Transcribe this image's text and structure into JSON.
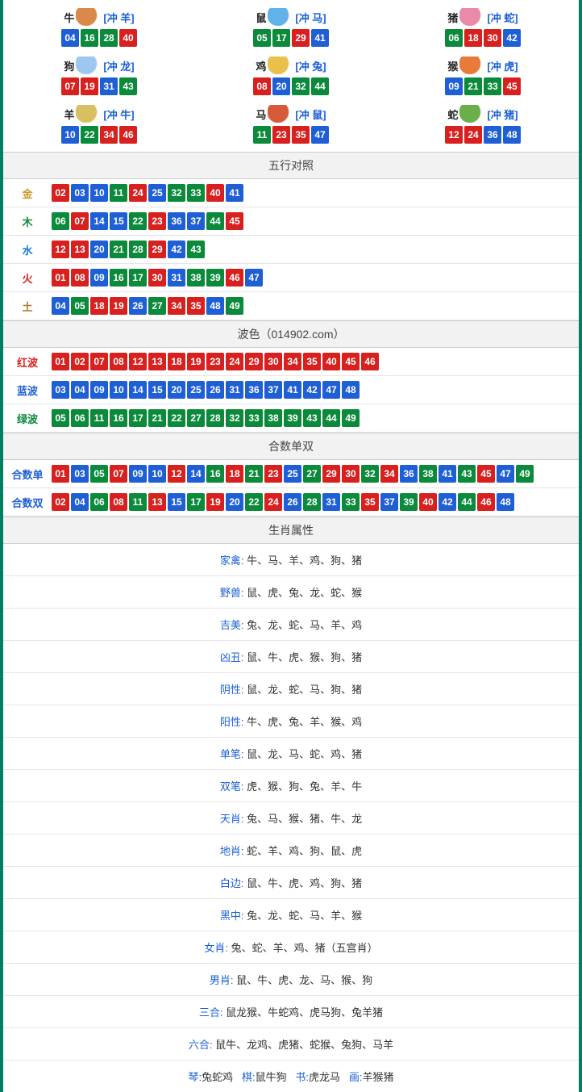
{
  "colors": {
    "red": "#d8201f",
    "blue": "#1f5fd6",
    "green": "#0a8a3a",
    "border": "#008060",
    "header_bg": "#f2f2f2",
    "text": "#333333",
    "link_blue": "#1a5fd6"
  },
  "ball_color_map": {
    "red": [
      "01",
      "02",
      "07",
      "08",
      "12",
      "13",
      "18",
      "19",
      "23",
      "24",
      "29",
      "30",
      "34",
      "35",
      "40",
      "45",
      "46"
    ],
    "blue": [
      "03",
      "04",
      "09",
      "10",
      "14",
      "15",
      "20",
      "25",
      "26",
      "31",
      "36",
      "37",
      "41",
      "42",
      "47",
      "48"
    ],
    "green": [
      "05",
      "06",
      "11",
      "16",
      "17",
      "21",
      "22",
      "27",
      "28",
      "32",
      "33",
      "38",
      "39",
      "43",
      "44",
      "49"
    ]
  },
  "zodiac_icon_colors": {
    "牛": "#d98a4a",
    "鼠": "#5fb3e8",
    "猪": "#e88aa8",
    "狗": "#9cc8f0",
    "鸡": "#e8c04a",
    "猴": "#e87a3a",
    "羊": "#d8c060",
    "马": "#d85a3a",
    "蛇": "#6ab04a"
  },
  "zodiac": [
    {
      "name": "牛",
      "clash": "[冲 羊]",
      "balls": [
        "04",
        "16",
        "28",
        "40"
      ]
    },
    {
      "name": "鼠",
      "clash": "[冲 马]",
      "balls": [
        "05",
        "17",
        "29",
        "41"
      ]
    },
    {
      "name": "猪",
      "clash": "[冲 蛇]",
      "balls": [
        "06",
        "18",
        "30",
        "42"
      ]
    },
    {
      "name": "狗",
      "clash": "[冲 龙]",
      "balls": [
        "07",
        "19",
        "31",
        "43"
      ]
    },
    {
      "name": "鸡",
      "clash": "[冲 兔]",
      "balls": [
        "08",
        "20",
        "32",
        "44"
      ]
    },
    {
      "name": "猴",
      "clash": "[冲 虎]",
      "balls": [
        "09",
        "21",
        "33",
        "45"
      ]
    },
    {
      "name": "羊",
      "clash": "[冲 牛]",
      "balls": [
        "10",
        "22",
        "34",
        "46"
      ]
    },
    {
      "name": "马",
      "clash": "[冲 鼠]",
      "balls": [
        "11",
        "23",
        "35",
        "47"
      ]
    },
    {
      "name": "蛇",
      "clash": "[冲 猪]",
      "balls": [
        "12",
        "24",
        "36",
        "48"
      ]
    }
  ],
  "sections": {
    "wuxing_title": "五行对照",
    "bose_title": "波色（014902.com）",
    "heshu_title": "合数单双",
    "shengxiao_title": "生肖属性"
  },
  "wuxing": [
    {
      "label": "金",
      "color": "#c79a2a",
      "balls": [
        "02",
        "03",
        "10",
        "11",
        "24",
        "25",
        "32",
        "33",
        "40",
        "41"
      ]
    },
    {
      "label": "木",
      "color": "#1a8a3a",
      "balls": [
        "06",
        "07",
        "14",
        "15",
        "22",
        "23",
        "36",
        "37",
        "44",
        "45"
      ]
    },
    {
      "label": "水",
      "color": "#1a7ad6",
      "balls": [
        "12",
        "13",
        "20",
        "21",
        "28",
        "29",
        "42",
        "43"
      ]
    },
    {
      "label": "火",
      "color": "#d8201f",
      "balls": [
        "01",
        "08",
        "09",
        "16",
        "17",
        "30",
        "31",
        "38",
        "39",
        "46",
        "47"
      ]
    },
    {
      "label": "土",
      "color": "#b07a2a",
      "balls": [
        "04",
        "05",
        "18",
        "19",
        "26",
        "27",
        "34",
        "35",
        "48",
        "49"
      ]
    }
  ],
  "bose": [
    {
      "label": "红波",
      "color": "#d8201f",
      "balls": [
        "01",
        "02",
        "07",
        "08",
        "12",
        "13",
        "18",
        "19",
        "23",
        "24",
        "29",
        "30",
        "34",
        "35",
        "40",
        "45",
        "46"
      ]
    },
    {
      "label": "蓝波",
      "color": "#1f5fd6",
      "balls": [
        "03",
        "04",
        "09",
        "10",
        "14",
        "15",
        "20",
        "25",
        "26",
        "31",
        "36",
        "37",
        "41",
        "42",
        "47",
        "48"
      ]
    },
    {
      "label": "绿波",
      "color": "#0a8a3a",
      "balls": [
        "05",
        "06",
        "11",
        "16",
        "17",
        "21",
        "22",
        "27",
        "28",
        "32",
        "33",
        "38",
        "39",
        "43",
        "44",
        "49"
      ]
    }
  ],
  "heshu": [
    {
      "label": "合数单",
      "color": "#1f5fd6",
      "balls": [
        "01",
        "03",
        "05",
        "07",
        "09",
        "10",
        "12",
        "14",
        "16",
        "18",
        "21",
        "23",
        "25",
        "27",
        "29",
        "30",
        "32",
        "34",
        "36",
        "38",
        "41",
        "43",
        "45",
        "47",
        "49"
      ]
    },
    {
      "label": "合数双",
      "color": "#1f5fd6",
      "balls": [
        "02",
        "04",
        "06",
        "08",
        "11",
        "13",
        "15",
        "17",
        "19",
        "20",
        "22",
        "24",
        "26",
        "28",
        "31",
        "33",
        "35",
        "37",
        "39",
        "40",
        "42",
        "44",
        "46",
        "48"
      ]
    }
  ],
  "attrs": [
    {
      "label": "家禽:",
      "value": "牛、马、羊、鸡、狗、猪"
    },
    {
      "label": "野兽:",
      "value": "鼠、虎、兔、龙、蛇、猴"
    },
    {
      "label": "吉美:",
      "value": "兔、龙、蛇、马、羊、鸡"
    },
    {
      "label": "凶丑:",
      "value": "鼠、牛、虎、猴、狗、猪"
    },
    {
      "label": "阴性:",
      "value": "鼠、龙、蛇、马、狗、猪"
    },
    {
      "label": "阳性:",
      "value": "牛、虎、兔、羊、猴、鸡"
    },
    {
      "label": "单笔:",
      "value": "鼠、龙、马、蛇、鸡、猪"
    },
    {
      "label": "双笔:",
      "value": "虎、猴、狗、兔、羊、牛"
    },
    {
      "label": "天肖:",
      "value": "兔、马、猴、猪、牛、龙"
    },
    {
      "label": "地肖:",
      "value": "蛇、羊、鸡、狗、鼠、虎"
    },
    {
      "label": "白边:",
      "value": "鼠、牛、虎、鸡、狗、猪"
    },
    {
      "label": "黑中:",
      "value": "兔、龙、蛇、马、羊、猴"
    },
    {
      "label": "女肖:",
      "value": "兔、蛇、羊、鸡、猪（五宫肖）"
    },
    {
      "label": "男肖:",
      "value": "鼠、牛、虎、龙、马、猴、狗"
    },
    {
      "label": "三合:",
      "value": "鼠龙猴、牛蛇鸡、虎马狗、兔羊猪"
    },
    {
      "label": "六合:",
      "value": "鼠牛、龙鸡、虎猪、蛇猴、兔狗、马羊"
    }
  ],
  "bottom_line": {
    "parts": [
      {
        "label": "琴:",
        "value": "兔蛇鸡"
      },
      {
        "label": "棋:",
        "value": "鼠牛狗"
      },
      {
        "label": "书:",
        "value": "虎龙马"
      },
      {
        "label": "画:",
        "value": "羊猴猪"
      }
    ]
  }
}
